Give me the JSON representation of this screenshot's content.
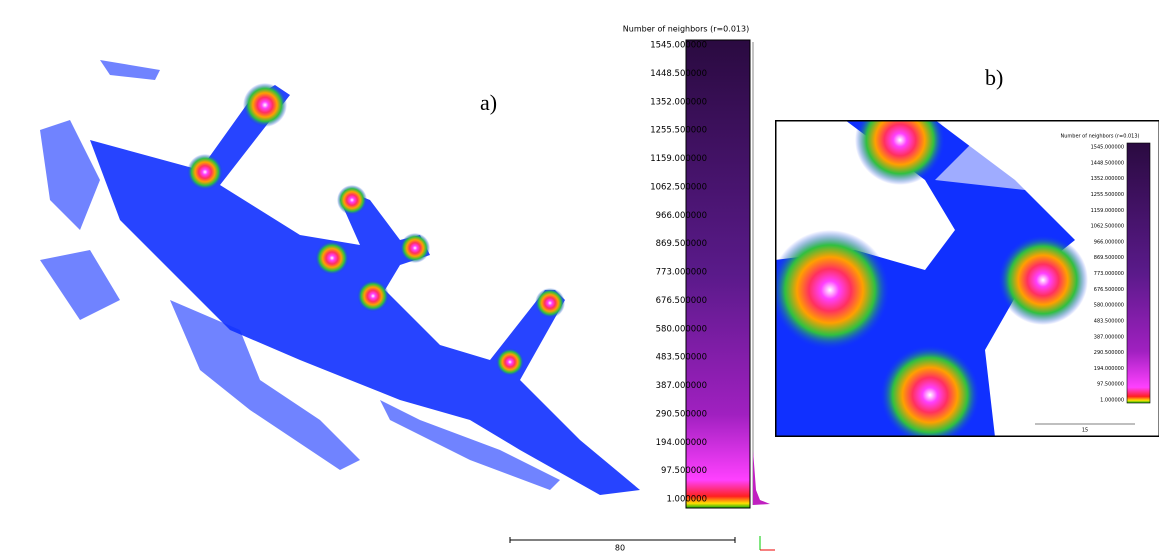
{
  "panels": [
    {
      "label": "a)",
      "scale_title": "Number of neighbors (r=0.013)",
      "scale_ticks": [
        "1545.000000",
        "1448.500000",
        "1352.000000",
        "1255.500000",
        "1159.000000",
        "1062.500000",
        "966.000000",
        "869.500000",
        "773.000000",
        "676.500000",
        "580.000000",
        "483.500000",
        "387.000000",
        "290.500000",
        "194.000000",
        "97.500000",
        "1.000000"
      ],
      "scale_bar_label": "80"
    },
    {
      "label": "b)",
      "scale_title": "Number of neighbors (r=0.013)",
      "scale_ticks": [
        "1545.000000",
        "1448.500000",
        "1352.000000",
        "1255.500000",
        "1159.000000",
        "1062.500000",
        "966.000000",
        "869.500000",
        "773.000000",
        "676.500000",
        "580.000000",
        "483.500000",
        "387.000000",
        "290.500000",
        "194.000000",
        "97.500000",
        "1.000000"
      ],
      "scale_bar_label": "15"
    }
  ]
}
